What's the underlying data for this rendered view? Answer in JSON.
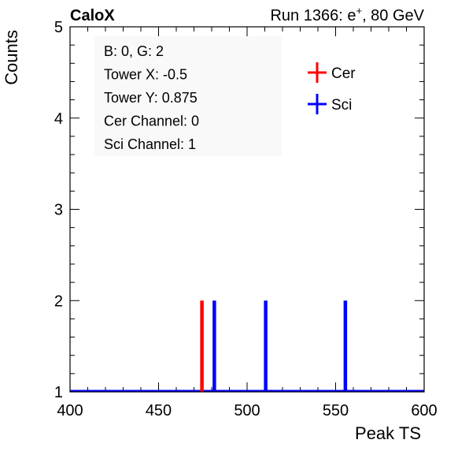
{
  "header": {
    "left": "CaloX",
    "right_prefix": "Run 1366: e",
    "right_sup": "+",
    "right_suffix": ", 80 GeV"
  },
  "info_box": {
    "lines": [
      "B: 0, G: 2",
      "Tower X: -0.5",
      "Tower Y: 0.875",
      "Cer Channel: 0",
      "Sci Channel: 1"
    ]
  },
  "chart_data": {
    "type": "bar",
    "title": "",
    "xlabel": "Peak TS",
    "ylabel": "Counts",
    "xlim": [
      400,
      600
    ],
    "ylim": [
      1,
      5
    ],
    "x_ticks": [
      400,
      450,
      500,
      550,
      600
    ],
    "y_ticks": [
      1,
      2,
      3,
      4,
      5
    ],
    "grid": false,
    "legend_position": "top-right",
    "series": [
      {
        "name": "Cer",
        "color": "#ff0000",
        "bins": [
          {
            "x": 474.5,
            "count": 2
          }
        ]
      },
      {
        "name": "Sci",
        "color": "#0000ff",
        "bins": [
          {
            "x": 481.5,
            "count": 2
          },
          {
            "x": 510.5,
            "count": 2
          },
          {
            "x": 555.5,
            "count": 2
          }
        ]
      }
    ]
  }
}
